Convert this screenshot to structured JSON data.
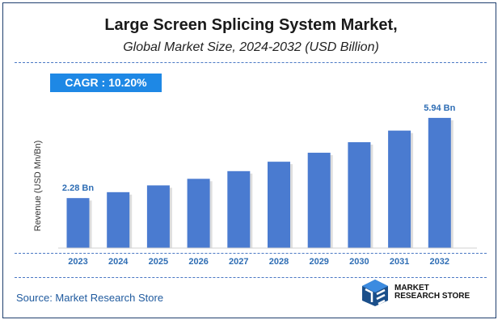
{
  "header": {
    "title": "Large Screen Splicing System Market,",
    "subtitle": "Global Market Size, 2024-2032 (USD Billion)"
  },
  "cagr": {
    "label": "CAGR :  10.20%"
  },
  "source": "Source: Market Research Store",
  "logo": {
    "line1": "MARKET",
    "line2": "RESEARCH STORE"
  },
  "colors": {
    "bar": "#4a7bd0",
    "accent": "#1e88e5",
    "label": "#2e6db4"
  },
  "chart_data": {
    "type": "bar",
    "title": "Large Screen Splicing System Market,",
    "subtitle": "Global Market Size, 2024-2032 (USD Billion)",
    "xlabel": "",
    "ylabel": "Revenue (USD Mn/Bn)",
    "categories": [
      "2023",
      "2024",
      "2025",
      "2026",
      "2027",
      "2028",
      "2029",
      "2030",
      "2031",
      "2032"
    ],
    "values": [
      2.28,
      2.55,
      2.86,
      3.16,
      3.51,
      3.94,
      4.35,
      4.83,
      5.36,
      5.94
    ],
    "data_labels": {
      "0": "2.28 Bn",
      "9": "5.94 Bn"
    },
    "ylim": [
      0,
      6.6
    ],
    "grid": false
  }
}
